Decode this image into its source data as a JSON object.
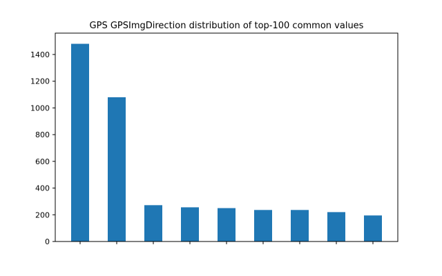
{
  "chart_data": {
    "type": "bar",
    "title": "GPS GPSImgDirection distribution of top-100 common values",
    "xlabel": "",
    "ylabel": "",
    "categories": [
      "",
      "",
      "",
      "",
      "",
      "",
      "",
      "",
      ""
    ],
    "values": [
      1480,
      1080,
      272,
      256,
      250,
      236,
      236,
      220,
      195
    ],
    "ylim": [
      0,
      1560
    ],
    "yticks": [
      0,
      200,
      400,
      600,
      800,
      1000,
      1200,
      1400
    ],
    "grid": false,
    "legend": "none",
    "colors": {
      "bar": "#1f77b4"
    }
  }
}
